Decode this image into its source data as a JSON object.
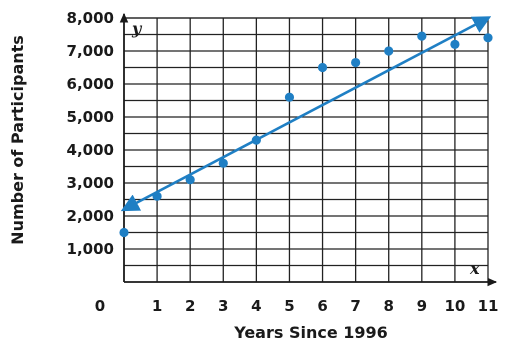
{
  "chart_data": {
    "type": "scatter",
    "title": "",
    "xlabel": "Years Since 1996",
    "ylabel": "Number of Participants",
    "x_axis_variable": "x",
    "y_axis_variable": "y",
    "xlim": [
      0,
      11
    ],
    "ylim": [
      0,
      8000
    ],
    "grid": true,
    "x_tick_labels": [
      "0",
      "1",
      "2",
      "3",
      "4",
      "5",
      "6",
      "7",
      "8",
      "9",
      "10",
      "11"
    ],
    "y_tick_labels": [
      "1,000",
      "2,000",
      "3,000",
      "4,000",
      "5,000",
      "6,000",
      "7,000",
      "8,000"
    ],
    "points": [
      {
        "x": 0,
        "y": 1500
      },
      {
        "x": 1,
        "y": 2600
      },
      {
        "x": 2,
        "y": 3100
      },
      {
        "x": 3,
        "y": 3600
      },
      {
        "x": 4,
        "y": 4300
      },
      {
        "x": 5,
        "y": 5600
      },
      {
        "x": 6,
        "y": 6500
      },
      {
        "x": 7,
        "y": 6650
      },
      {
        "x": 8,
        "y": 7000
      },
      {
        "x": 9,
        "y": 7450
      },
      {
        "x": 10,
        "y": 7200
      },
      {
        "x": 11,
        "y": 7400
      }
    ],
    "trend_line": {
      "x1": 0,
      "y1": 2200,
      "x2": 11,
      "y2": 8000,
      "arrows": "both"
    },
    "colors": {
      "points": "#1f7fc4",
      "line": "#1f7fc4",
      "grid": "#222222"
    }
  }
}
